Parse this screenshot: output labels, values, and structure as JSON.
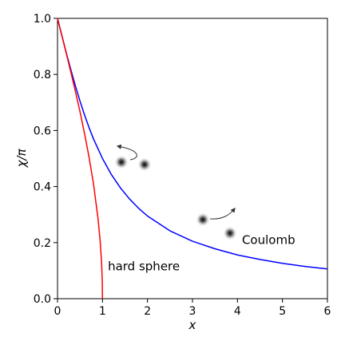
{
  "chart_data": {
    "type": "line",
    "title": "",
    "xlabel": "x",
    "ylabel": "χ/π",
    "xlim": [
      0,
      6
    ],
    "ylim": [
      0,
      1.0
    ],
    "xticks": [
      0,
      1,
      2,
      3,
      4,
      5,
      6
    ],
    "xtick_labels": [
      "0",
      "1",
      "2",
      "3",
      "4",
      "5",
      "6"
    ],
    "yticks": [
      0.0,
      0.2,
      0.4,
      0.6,
      0.8,
      1.0
    ],
    "ytick_labels": [
      "0.0",
      "0.2",
      "0.4",
      "0.6",
      "0.8",
      "1.0"
    ],
    "grid": false,
    "series": [
      {
        "name": "Coulomb",
        "color": "#0000ff",
        "x": [
          0,
          0.05,
          0.1,
          0.2,
          0.3,
          0.4,
          0.5,
          0.6,
          0.7,
          0.8,
          1.0,
          1.2,
          1.4,
          1.6,
          1.8,
          2.0,
          2.5,
          3.0,
          3.5,
          4.0,
          4.5,
          5.0,
          5.5,
          6.0
        ],
        "y": [
          1.0,
          0.968,
          0.937,
          0.874,
          0.815,
          0.758,
          0.705,
          0.656,
          0.611,
          0.57,
          0.5,
          0.442,
          0.395,
          0.356,
          0.323,
          0.295,
          0.242,
          0.205,
          0.178,
          0.156,
          0.14,
          0.126,
          0.115,
          0.106
        ]
      },
      {
        "name": "hard sphere",
        "color": "#ff0000",
        "x": [
          0,
          0.1,
          0.2,
          0.3,
          0.4,
          0.5,
          0.6,
          0.7,
          0.8,
          0.9,
          0.95,
          0.98,
          0.995,
          1.0
        ],
        "y": [
          1.0,
          0.936,
          0.872,
          0.806,
          0.738,
          0.667,
          0.59,
          0.506,
          0.41,
          0.287,
          0.202,
          0.128,
          0.064,
          0.0
        ]
      }
    ],
    "annotations": [
      {
        "text": "Coulomb",
        "x": 4.1,
        "y": 0.21
      },
      {
        "text": "hard sphere",
        "x": 1.12,
        "y": 0.115
      }
    ]
  }
}
